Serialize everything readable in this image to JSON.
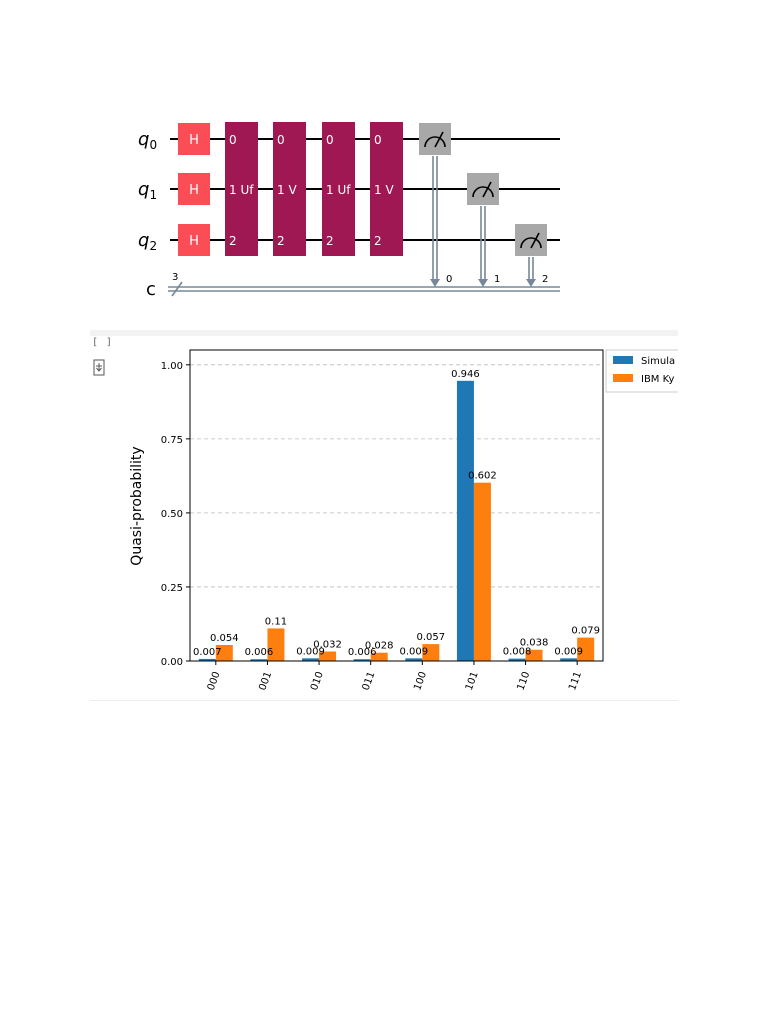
{
  "circuit": {
    "qubits": [
      {
        "base": "q",
        "sub": "0"
      },
      {
        "base": "q",
        "sub": "1"
      },
      {
        "base": "q",
        "sub": "2"
      }
    ],
    "classical": {
      "label": "c",
      "width": "3",
      "bits": [
        "0",
        "1",
        "2"
      ]
    },
    "gates": {
      "h": "H",
      "oracle_1": {
        "top": "0",
        "mid": "1 Uf",
        "bot": "2"
      },
      "diffuser_1": {
        "top": "0",
        "mid": "1 V",
        "bot": "2"
      },
      "oracle_2": {
        "top": "0",
        "mid": "1 Uf",
        "bot": "2"
      },
      "diffuser_2": {
        "top": "0",
        "mid": "1 V",
        "bot": "2"
      }
    },
    "colors": {
      "h_gate": "#fa4d56",
      "multi_gate": "#9f1853",
      "measure": "#a8a8a8",
      "classical_wire": "#778899"
    }
  },
  "cell": {
    "prompt": "[ ]",
    "exec_icon": "output-toggle-icon"
  },
  "chart_data": {
    "type": "bar",
    "categories": [
      "000",
      "001",
      "010",
      "011",
      "100",
      "101",
      "110",
      "111"
    ],
    "series": [
      {
        "name": "Simula",
        "color": "#1f77b4",
        "values": [
          0.007,
          0.006,
          0.009,
          0.006,
          0.009,
          0.946,
          0.008,
          0.009
        ],
        "labels": [
          "0.007",
          "0.006",
          "0.009",
          "0.006",
          "0.009",
          "0.946",
          "0.008",
          "0.009"
        ]
      },
      {
        "name": "IBM Ky",
        "color": "#ff7f0e",
        "values": [
          0.054,
          0.11,
          0.032,
          0.028,
          0.057,
          0.602,
          0.038,
          0.079
        ],
        "labels": [
          "0.054",
          "0.11",
          "0.032",
          "0.028",
          "0.057",
          "0.602",
          "0.038",
          "0.079"
        ]
      }
    ],
    "ylabel": "Quasi-probability",
    "ylim": [
      0,
      1.05
    ],
    "yticks": [
      "0.00",
      "0.25",
      "0.50",
      "0.75",
      "1.00"
    ],
    "ytick_values": [
      0,
      0.25,
      0.5,
      0.75,
      1.0
    ],
    "grid": "y dashed",
    "legend": "top-right outside"
  }
}
